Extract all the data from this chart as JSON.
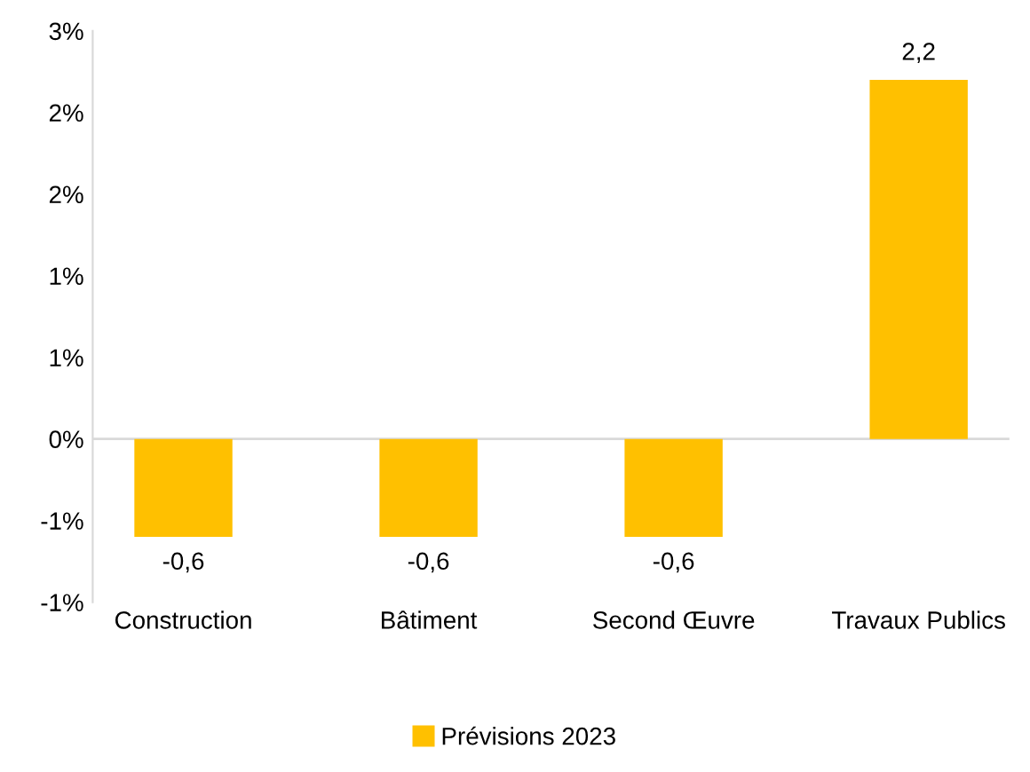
{
  "chart_data": {
    "type": "bar",
    "categories": [
      "Construction",
      "Bâtiment",
      "Second Œuvre",
      "Travaux Publics"
    ],
    "series": [
      {
        "name": "Prévisions 2023",
        "color": "#ffc000",
        "values": [
          -0.6,
          -0.6,
          -0.6,
          2.2
        ],
        "value_labels": [
          "-0,6",
          "-0,6",
          "-0,6",
          "2,2"
        ]
      }
    ],
    "ylim": [
      -1.0,
      2.5
    ],
    "yticks": [
      {
        "value": -1.0,
        "label": "-1%"
      },
      {
        "value": -0.5,
        "label": "-1%"
      },
      {
        "value": 0,
        "label": "0%"
      },
      {
        "value": 0.5,
        "label": "1%"
      },
      {
        "value": 1.0,
        "label": "1%"
      },
      {
        "value": 1.5,
        "label": "2%"
      },
      {
        "value": 2.0,
        "label": "2%"
      },
      {
        "value": 2.5,
        "label": "3%"
      }
    ],
    "ref_lines": [
      {
        "axis": "y",
        "value": 0,
        "color": "#d9d9d9"
      }
    ],
    "legend": "bottom",
    "grid": false
  }
}
